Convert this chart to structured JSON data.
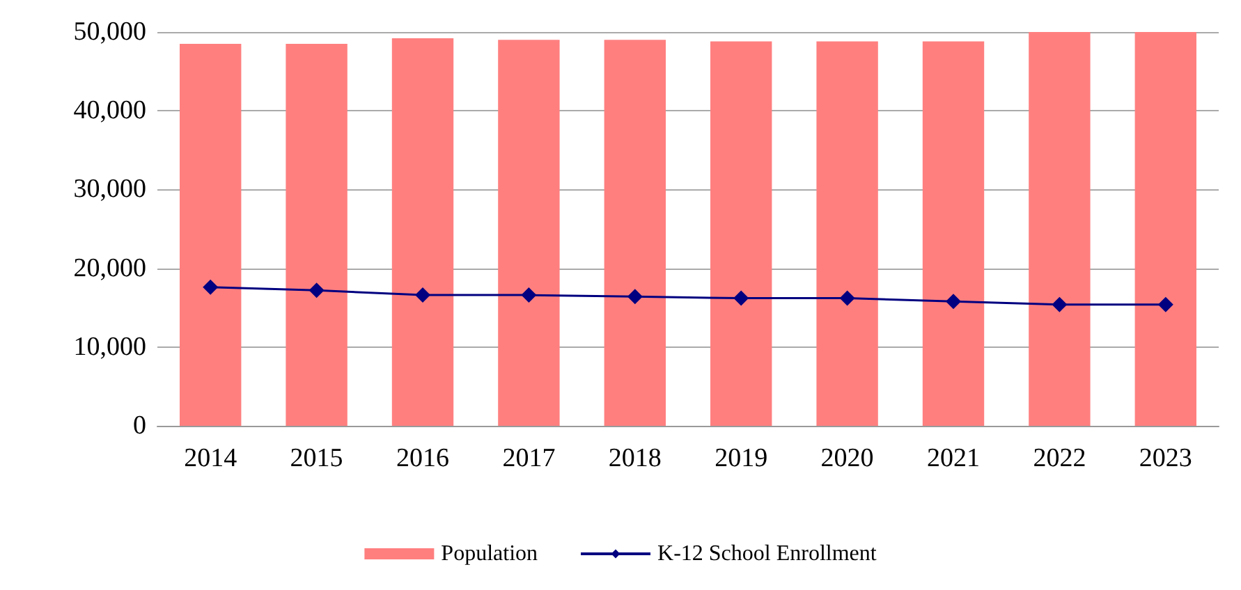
{
  "chart_data": {
    "type": "bar",
    "categories": [
      "2014",
      "2015",
      "2016",
      "2017",
      "2018",
      "2019",
      "2020",
      "2021",
      "2022",
      "2023"
    ],
    "series": [
      {
        "name": "Population",
        "color": "#ff7f7f",
        "values": [
          48500,
          48500,
          49200,
          49000,
          49000,
          48800,
          48800,
          48800,
          50000,
          50000
        ]
      },
      {
        "name": "K-12 School Enrollment",
        "type": "line",
        "color": "#000080",
        "values": [
          17600,
          17200,
          16600,
          16600,
          16400,
          16200,
          16200,
          15800,
          15400,
          15400
        ]
      }
    ],
    "ylim": [
      0,
      50000
    ],
    "yticks": [
      0,
      {
        "value": 10000,
        "label": "10,000"
      },
      {
        "value": 20000,
        "label": "20,000"
      },
      {
        "value": 30000,
        "label": "30,000"
      },
      {
        "value": 40000,
        "label": "40,000"
      },
      {
        "value": 50000,
        "label": "50,000"
      }
    ],
    "grid": "y",
    "legend": "bottom",
    "marker": "diamond"
  }
}
